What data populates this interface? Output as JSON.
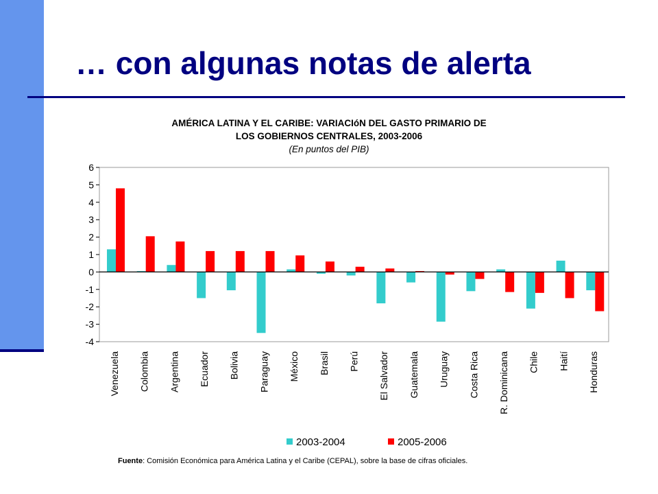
{
  "slide": {
    "title": "… con algunas notas de alerta",
    "colors": {
      "sidebar": "#6495ED",
      "rule": "#000080",
      "title": "#000080"
    }
  },
  "chart_data": {
    "type": "bar",
    "title_line1": "AMÉRICA LATINA Y EL CARIBE: VARIACIóN DEL GASTO PRIMARIO DE",
    "title_line2": "LOS GOBIERNOS CENTRALES, 2003-2006",
    "subtitle": "(En puntos del PIB)",
    "categories": [
      "Venezuela",
      "Colombia",
      "Argentina",
      "Ecuador",
      "Bolivia",
      "Paraguay",
      "México",
      "Brasil",
      "Perú",
      "El Salvador",
      "Guatemala",
      "Uruguay",
      "Costa Rica",
      "R. Dominicana",
      "Chile",
      "Haití",
      "Honduras"
    ],
    "series": [
      {
        "name": "2003-2004",
        "color": "#33CCCC",
        "values": [
          1.3,
          0.05,
          0.4,
          -1.5,
          -1.05,
          -3.5,
          0.15,
          -0.1,
          -0.2,
          -1.8,
          -0.6,
          -2.85,
          -1.1,
          0.15,
          -2.1,
          0.65,
          -1.05
        ]
      },
      {
        "name": "2005-2006",
        "color": "#FF0000",
        "values": [
          4.8,
          2.05,
          1.75,
          1.2,
          1.2,
          1.2,
          0.95,
          0.6,
          0.3,
          0.2,
          0.05,
          -0.15,
          -0.4,
          -1.15,
          -1.2,
          -1.5,
          -2.25
        ]
      }
    ],
    "ylim": [
      -4,
      6
    ],
    "yticks": [
      "-4",
      "-3",
      "-2",
      "-1",
      "0",
      "1",
      "2",
      "3",
      "4",
      "5",
      "6"
    ],
    "xlabel": "",
    "ylabel": "",
    "grid": false,
    "legend_position": "bottom"
  },
  "source": {
    "label": "Fuente",
    "text": ":  Comisión Económica para América Latina y el Caribe (CEPAL),  sobre la base de cifras oficiales."
  }
}
